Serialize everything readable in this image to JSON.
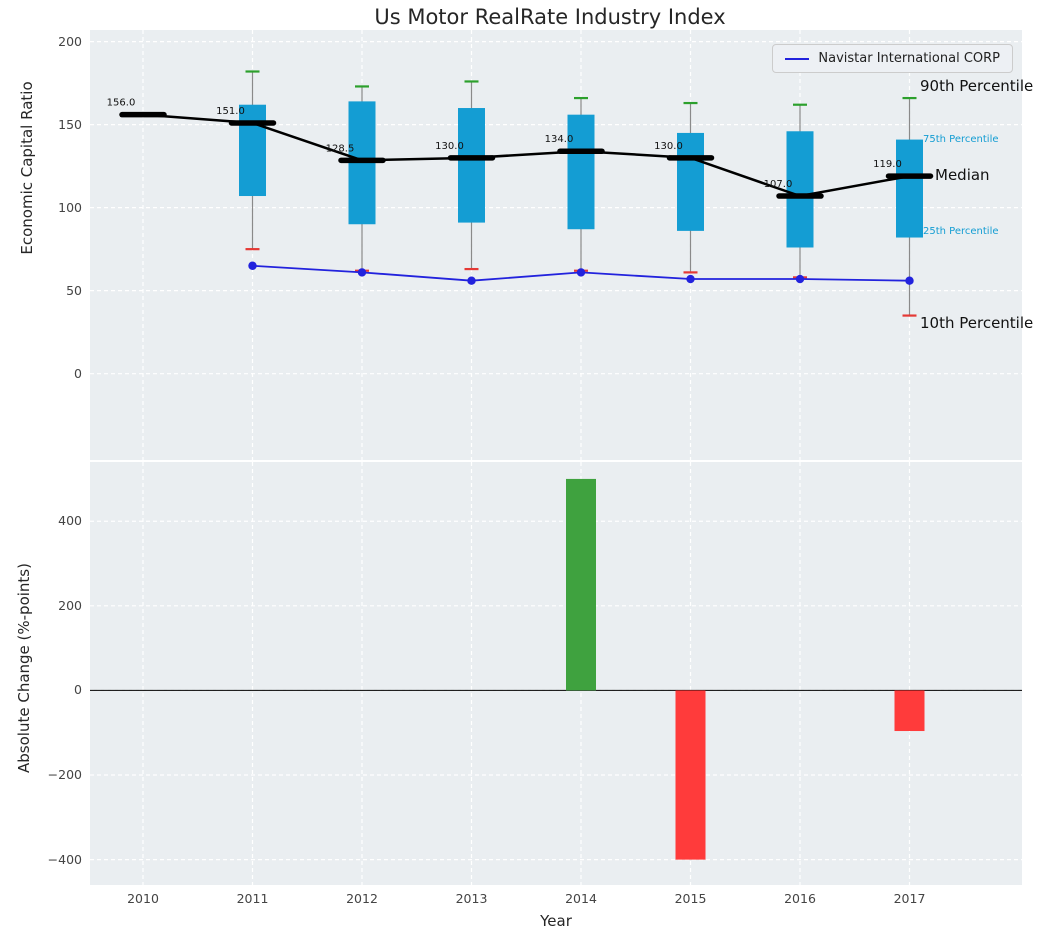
{
  "chart_data": {
    "type": "boxplot-line-bar-combo",
    "title": "Us Motor RealRate Industry Index",
    "years": [
      2010,
      2011,
      2012,
      2013,
      2014,
      2015,
      2016,
      2017
    ],
    "top": {
      "ylabel": "Economic Capital Ratio",
      "yticks": [
        200,
        150,
        100,
        50,
        0
      ],
      "ylim": [
        -52,
        207
      ],
      "grid": true,
      "legend_label": "Navistar International CORP",
      "legend_position": "upper right",
      "annotations": {
        "p90": "90th Percentile",
        "p75": "75th Percentile",
        "median": "Median",
        "p25": "25th Percentile",
        "p10": "10th Percentile"
      },
      "median": [
        156,
        151,
        128.5,
        130,
        134,
        130,
        107,
        119
      ],
      "median_labels": [
        "156.0",
        "151.0",
        "128.5",
        "130.0",
        "134.0",
        "130.0",
        "107.0",
        "119.0"
      ],
      "q3": [
        null,
        162,
        164,
        160,
        156,
        145,
        146,
        141
      ],
      "q1": [
        null,
        107,
        90,
        91,
        87,
        86,
        76,
        82
      ],
      "p90": [
        null,
        182,
        173,
        176,
        166,
        163,
        162,
        166
      ],
      "p10": [
        null,
        75,
        62,
        63,
        62,
        61,
        58,
        35
      ],
      "navistar": [
        null,
        65,
        61,
        56,
        61,
        57,
        57,
        56
      ]
    },
    "bottom": {
      "ylabel": "Absolute Change (%-points)",
      "xlabel": "Year",
      "yticks": [
        400,
        200,
        0,
        -200,
        -400
      ],
      "ylim": [
        -460,
        540
      ],
      "grid": true,
      "values": [
        0,
        0,
        0,
        0,
        500,
        -400,
        0,
        -96
      ]
    },
    "colors": {
      "box": "#149dd3",
      "median": "#000000",
      "navistar": "#2222dd",
      "p90_cap": "#2ca02c",
      "p10_cap": "#e53935",
      "bar_positive": "#3fa23f",
      "bar_negative": "#ff3b3b",
      "whisker": "#8a8a8a",
      "plot_bg": "#eaeef1",
      "grid": "#ffffff"
    }
  }
}
